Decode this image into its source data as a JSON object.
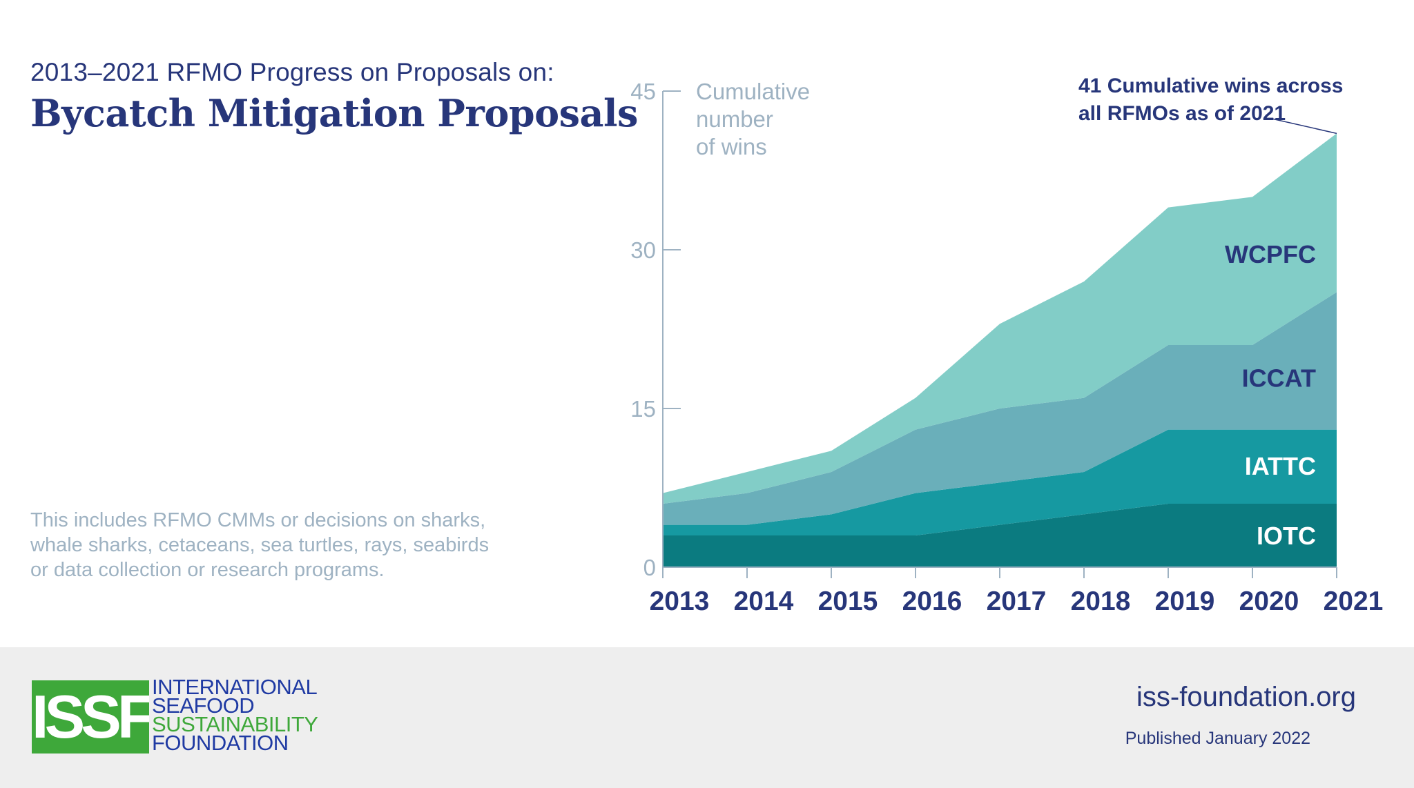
{
  "header": {
    "subtitle": "2013–2021 RFMO Progress on Proposals on:",
    "title": "Bycatch Mitigation Proposals"
  },
  "note": "This includes RFMO CMMs or decisions on sharks,\nwhale sharks, cetaceans, sea turtles, rays, seabirds\nor data collection or research programs.",
  "footer": {
    "logo_mark": "ISSF",
    "logo_lines": [
      "INTERNATIONAL",
      "SEAFOOD",
      "SUSTAINABILITY",
      "FOUNDATION"
    ],
    "website": "iss-foundation.org",
    "published": "Published January 2022"
  },
  "colors": {
    "navy": "#27367a",
    "axis": "#9eb2c2",
    "IOTC": "#0b7b80",
    "IATTC": "#1699a1",
    "ICCAT": "#6aafba",
    "WCPFC": "#82cdc7",
    "logo_green": "#3ea83a",
    "logo_blue": "#1f3aa3"
  },
  "chart_data": {
    "type": "area",
    "stacked": true,
    "ylabel": "Cumulative number of wins",
    "ylabel_lines": [
      "Cumulative",
      "number",
      "of wins"
    ],
    "ylim": [
      0,
      45
    ],
    "yticks": [
      0,
      15,
      30,
      45
    ],
    "x": [
      "2013",
      "2014",
      "2015",
      "2016",
      "2017",
      "2018",
      "2019",
      "2020",
      "2021"
    ],
    "series": [
      {
        "name": "IOTC",
        "values": [
          3,
          3,
          3,
          3,
          4,
          5,
          6,
          6,
          6
        ]
      },
      {
        "name": "IATTC",
        "values": [
          1,
          1,
          2,
          4,
          4,
          4,
          7,
          7,
          7
        ]
      },
      {
        "name": "ICCAT",
        "values": [
          2,
          3,
          4,
          6,
          7,
          7,
          8,
          8,
          13
        ]
      },
      {
        "name": "WCPFC",
        "values": [
          1,
          2,
          2,
          3,
          8,
          11,
          13,
          14,
          15
        ]
      }
    ],
    "series_label_values": {
      "IOTC": 3,
      "IATTC": 9.6,
      "ICCAT": 17.9,
      "WCPFC": 29.6
    },
    "annotation": {
      "lines": [
        "41 Cumulative wins across",
        "all RFMOs as of 2021"
      ],
      "x": "2021",
      "y": 41
    }
  }
}
